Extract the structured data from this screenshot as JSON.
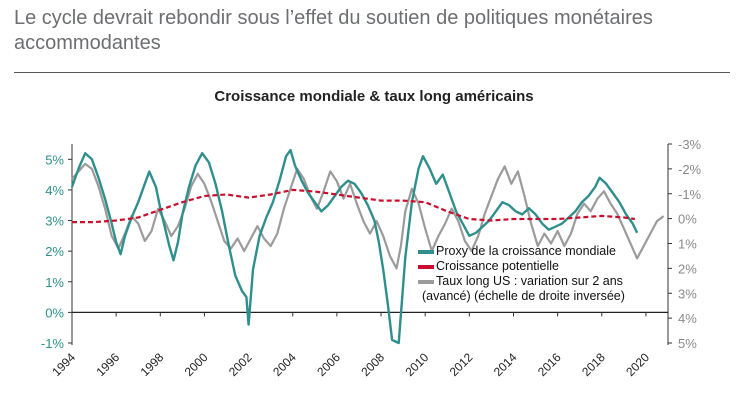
{
  "header": {
    "title": "Le cycle devrait rebondir sous l’effet du soutien de politiques monétaires accommodantes"
  },
  "chart_data": {
    "type": "line",
    "title": "Croissance mondiale & taux long américains",
    "xlabel": "",
    "ylabel": "",
    "x_ticks": [
      "1994",
      "1996",
      "1998",
      "2000",
      "2002",
      "2004",
      "2006",
      "2008",
      "2010",
      "2012",
      "2014",
      "2016",
      "2018",
      "2020"
    ],
    "xlim": [
      1994,
      2021
    ],
    "y_left": {
      "ticks": [
        "5%",
        "4%",
        "3%",
        "2%",
        "1%",
        "0%",
        "-1%"
      ],
      "values": [
        5,
        4,
        3,
        2,
        1,
        0,
        -1
      ],
      "ylim": [
        -1,
        5.5
      ]
    },
    "y_right": {
      "ticks": [
        "-3%",
        "-2%",
        "-1%",
        "0%",
        "1%",
        "2%",
        "3%",
        "4%",
        "5%"
      ],
      "values": [
        -3,
        -2,
        -1,
        0,
        1,
        2,
        3,
        4,
        5
      ],
      "ylim": [
        -3,
        5
      ],
      "inverted": true
    },
    "colors": {
      "proxy": "#2e8f8c",
      "potential": "#c8102e",
      "rates": "#9b9b9b"
    },
    "legend": {
      "placement": "bottom-right",
      "entries": [
        {
          "label": "Proxy de la croissance mondiale"
        },
        {
          "label": "Croissance potentielle"
        },
        {
          "label": "Taux long US : variation sur 2 ans"
        }
      ],
      "continuation": "(avancé) (échelle de droite inversée)"
    },
    "series": [
      {
        "name": "Proxy de la croissance mondiale",
        "axis": "left",
        "points": [
          [
            1994.0,
            4.1
          ],
          [
            1994.3,
            4.7
          ],
          [
            1994.6,
            5.2
          ],
          [
            1994.9,
            5.0
          ],
          [
            1995.2,
            4.4
          ],
          [
            1995.5,
            3.7
          ],
          [
            1995.8,
            2.9
          ],
          [
            1996.0,
            2.3
          ],
          [
            1996.2,
            1.9
          ],
          [
            1996.4,
            2.5
          ],
          [
            1996.7,
            3.1
          ],
          [
            1997.0,
            3.6
          ],
          [
            1997.3,
            4.2
          ],
          [
            1997.5,
            4.6
          ],
          [
            1997.8,
            4.1
          ],
          [
            1998.0,
            3.4
          ],
          [
            1998.2,
            2.8
          ],
          [
            1998.4,
            2.2
          ],
          [
            1998.6,
            1.7
          ],
          [
            1998.8,
            2.3
          ],
          [
            1999.0,
            3.2
          ],
          [
            1999.3,
            4.1
          ],
          [
            1999.6,
            4.8
          ],
          [
            1999.9,
            5.2
          ],
          [
            2000.2,
            4.9
          ],
          [
            2000.5,
            4.2
          ],
          [
            2000.8,
            3.3
          ],
          [
            2001.1,
            2.2
          ],
          [
            2001.4,
            1.2
          ],
          [
            2001.7,
            0.7
          ],
          [
            2001.9,
            0.5
          ],
          [
            2002.0,
            -0.4
          ],
          [
            2002.2,
            1.4
          ],
          [
            2002.5,
            2.5
          ],
          [
            2002.8,
            3.1
          ],
          [
            2003.1,
            3.6
          ],
          [
            2003.4,
            4.3
          ],
          [
            2003.7,
            5.1
          ],
          [
            2003.9,
            5.3
          ],
          [
            2004.1,
            4.8
          ],
          [
            2004.4,
            4.3
          ],
          [
            2004.7,
            3.9
          ],
          [
            2005.0,
            3.6
          ],
          [
            2005.3,
            3.3
          ],
          [
            2005.6,
            3.5
          ],
          [
            2005.9,
            3.8
          ],
          [
            2006.2,
            4.1
          ],
          [
            2006.5,
            4.3
          ],
          [
            2006.8,
            4.2
          ],
          [
            2007.1,
            3.9
          ],
          [
            2007.4,
            3.5
          ],
          [
            2007.7,
            3.0
          ],
          [
            2007.9,
            2.3
          ],
          [
            2008.1,
            1.4
          ],
          [
            2008.3,
            0.3
          ],
          [
            2008.5,
            -0.9
          ],
          [
            2008.8,
            -1.0
          ],
          [
            2009.1,
            1.8
          ],
          [
            2009.4,
            3.6
          ],
          [
            2009.7,
            4.7
          ],
          [
            2009.9,
            5.1
          ],
          [
            2010.2,
            4.7
          ],
          [
            2010.5,
            4.2
          ],
          [
            2010.8,
            4.5
          ],
          [
            2011.1,
            3.9
          ],
          [
            2011.4,
            3.3
          ],
          [
            2011.7,
            2.9
          ],
          [
            2012.0,
            2.5
          ],
          [
            2012.3,
            2.6
          ],
          [
            2012.6,
            2.8
          ],
          [
            2012.9,
            3.0
          ],
          [
            2013.2,
            3.3
          ],
          [
            2013.5,
            3.6
          ],
          [
            2013.8,
            3.5
          ],
          [
            2014.1,
            3.3
          ],
          [
            2014.4,
            3.2
          ],
          [
            2014.7,
            3.4
          ],
          [
            2015.0,
            3.2
          ],
          [
            2015.3,
            2.9
          ],
          [
            2015.6,
            2.7
          ],
          [
            2015.9,
            2.8
          ],
          [
            2016.2,
            2.9
          ],
          [
            2016.5,
            3.1
          ],
          [
            2016.8,
            3.3
          ],
          [
            2017.1,
            3.6
          ],
          [
            2017.4,
            3.8
          ],
          [
            2017.7,
            4.1
          ],
          [
            2017.9,
            4.4
          ],
          [
            2018.2,
            4.2
          ],
          [
            2018.5,
            3.9
          ],
          [
            2018.8,
            3.6
          ],
          [
            2019.1,
            3.2
          ],
          [
            2019.4,
            2.9
          ],
          [
            2019.6,
            2.6
          ]
        ]
      },
      {
        "name": "Croissance potentielle",
        "axis": "left",
        "points": [
          [
            1994.0,
            2.95
          ],
          [
            1995.0,
            2.95
          ],
          [
            1996.0,
            3.0
          ],
          [
            1997.0,
            3.1
          ],
          [
            1998.0,
            3.35
          ],
          [
            1999.0,
            3.6
          ],
          [
            2000.0,
            3.8
          ],
          [
            2001.0,
            3.85
          ],
          [
            2002.0,
            3.75
          ],
          [
            2003.0,
            3.85
          ],
          [
            2004.0,
            4.0
          ],
          [
            2005.0,
            3.95
          ],
          [
            2006.0,
            3.85
          ],
          [
            2007.0,
            3.75
          ],
          [
            2008.0,
            3.65
          ],
          [
            2009.0,
            3.65
          ],
          [
            2010.0,
            3.6
          ],
          [
            2011.0,
            3.3
          ],
          [
            2012.0,
            3.05
          ],
          [
            2013.0,
            3.0
          ],
          [
            2014.0,
            3.05
          ],
          [
            2015.0,
            3.05
          ],
          [
            2016.0,
            3.05
          ],
          [
            2017.0,
            3.1
          ],
          [
            2018.0,
            3.15
          ],
          [
            2019.0,
            3.1
          ],
          [
            2019.5,
            3.05
          ]
        ]
      },
      {
        "name": "Taux long US : variation sur 2 ans",
        "axis": "right",
        "points": [
          [
            1994.0,
            -1.6
          ],
          [
            1994.3,
            -1.9
          ],
          [
            1994.6,
            -2.2
          ],
          [
            1994.9,
            -2.0
          ],
          [
            1995.2,
            -1.3
          ],
          [
            1995.5,
            -0.4
          ],
          [
            1995.8,
            0.7
          ],
          [
            1996.1,
            1.2
          ],
          [
            1996.4,
            0.6
          ],
          [
            1996.7,
            -0.1
          ],
          [
            1997.0,
            0.2
          ],
          [
            1997.3,
            0.9
          ],
          [
            1997.6,
            0.5
          ],
          [
            1997.9,
            -0.4
          ],
          [
            1998.2,
            0.1
          ],
          [
            1998.5,
            0.7
          ],
          [
            1998.8,
            0.3
          ],
          [
            1999.1,
            -0.4
          ],
          [
            1999.4,
            -1.3
          ],
          [
            1999.7,
            -1.8
          ],
          [
            2000.0,
            -1.4
          ],
          [
            2000.3,
            -0.7
          ],
          [
            2000.6,
            0.1
          ],
          [
            2000.9,
            0.9
          ],
          [
            2001.2,
            1.2
          ],
          [
            2001.5,
            0.8
          ],
          [
            2001.8,
            1.3
          ],
          [
            2002.1,
            0.8
          ],
          [
            2002.4,
            0.3
          ],
          [
            2002.7,
            0.8
          ],
          [
            2003.0,
            1.1
          ],
          [
            2003.3,
            0.6
          ],
          [
            2003.6,
            -0.4
          ],
          [
            2003.9,
            -1.2
          ],
          [
            2004.2,
            -2.0
          ],
          [
            2004.5,
            -1.6
          ],
          [
            2004.8,
            -0.9
          ],
          [
            2005.1,
            -0.4
          ],
          [
            2005.4,
            -1.1
          ],
          [
            2005.7,
            -1.9
          ],
          [
            2006.0,
            -1.5
          ],
          [
            2006.3,
            -0.8
          ],
          [
            2006.6,
            -1.4
          ],
          [
            2006.9,
            -0.6
          ],
          [
            2007.2,
            0.1
          ],
          [
            2007.5,
            0.6
          ],
          [
            2007.8,
            0.1
          ],
          [
            2008.1,
            0.7
          ],
          [
            2008.4,
            1.5
          ],
          [
            2008.7,
            2.0
          ],
          [
            2008.9,
            1.1
          ],
          [
            2009.1,
            -0.3
          ],
          [
            2009.4,
            -1.2
          ],
          [
            2009.7,
            -0.6
          ],
          [
            2010.0,
            0.4
          ],
          [
            2010.3,
            1.3
          ],
          [
            2010.6,
            0.7
          ],
          [
            2010.9,
            0.2
          ],
          [
            2011.2,
            -0.4
          ],
          [
            2011.5,
            0.1
          ],
          [
            2011.8,
            0.9
          ],
          [
            2012.1,
            1.3
          ],
          [
            2012.4,
            0.7
          ],
          [
            2012.7,
            -0.2
          ],
          [
            2013.0,
            -0.9
          ],
          [
            2013.3,
            -1.6
          ],
          [
            2013.6,
            -2.1
          ],
          [
            2013.9,
            -1.4
          ],
          [
            2014.2,
            -1.9
          ],
          [
            2014.5,
            -0.9
          ],
          [
            2014.8,
            0.2
          ],
          [
            2015.1,
            1.1
          ],
          [
            2015.4,
            0.6
          ],
          [
            2015.7,
            1.0
          ],
          [
            2016.0,
            0.5
          ],
          [
            2016.3,
            1.1
          ],
          [
            2016.6,
            0.6
          ],
          [
            2016.9,
            -0.2
          ],
          [
            2017.2,
            -0.6
          ],
          [
            2017.5,
            -0.3
          ],
          [
            2017.8,
            -0.8
          ],
          [
            2018.1,
            -1.1
          ],
          [
            2018.4,
            -0.6
          ],
          [
            2018.7,
            -0.2
          ],
          [
            2019.0,
            0.4
          ],
          [
            2019.3,
            1.0
          ],
          [
            2019.6,
            1.6
          ],
          [
            2019.9,
            1.1
          ],
          [
            2020.2,
            0.6
          ],
          [
            2020.5,
            0.1
          ],
          [
            2020.8,
            -0.1
          ]
        ]
      }
    ]
  }
}
